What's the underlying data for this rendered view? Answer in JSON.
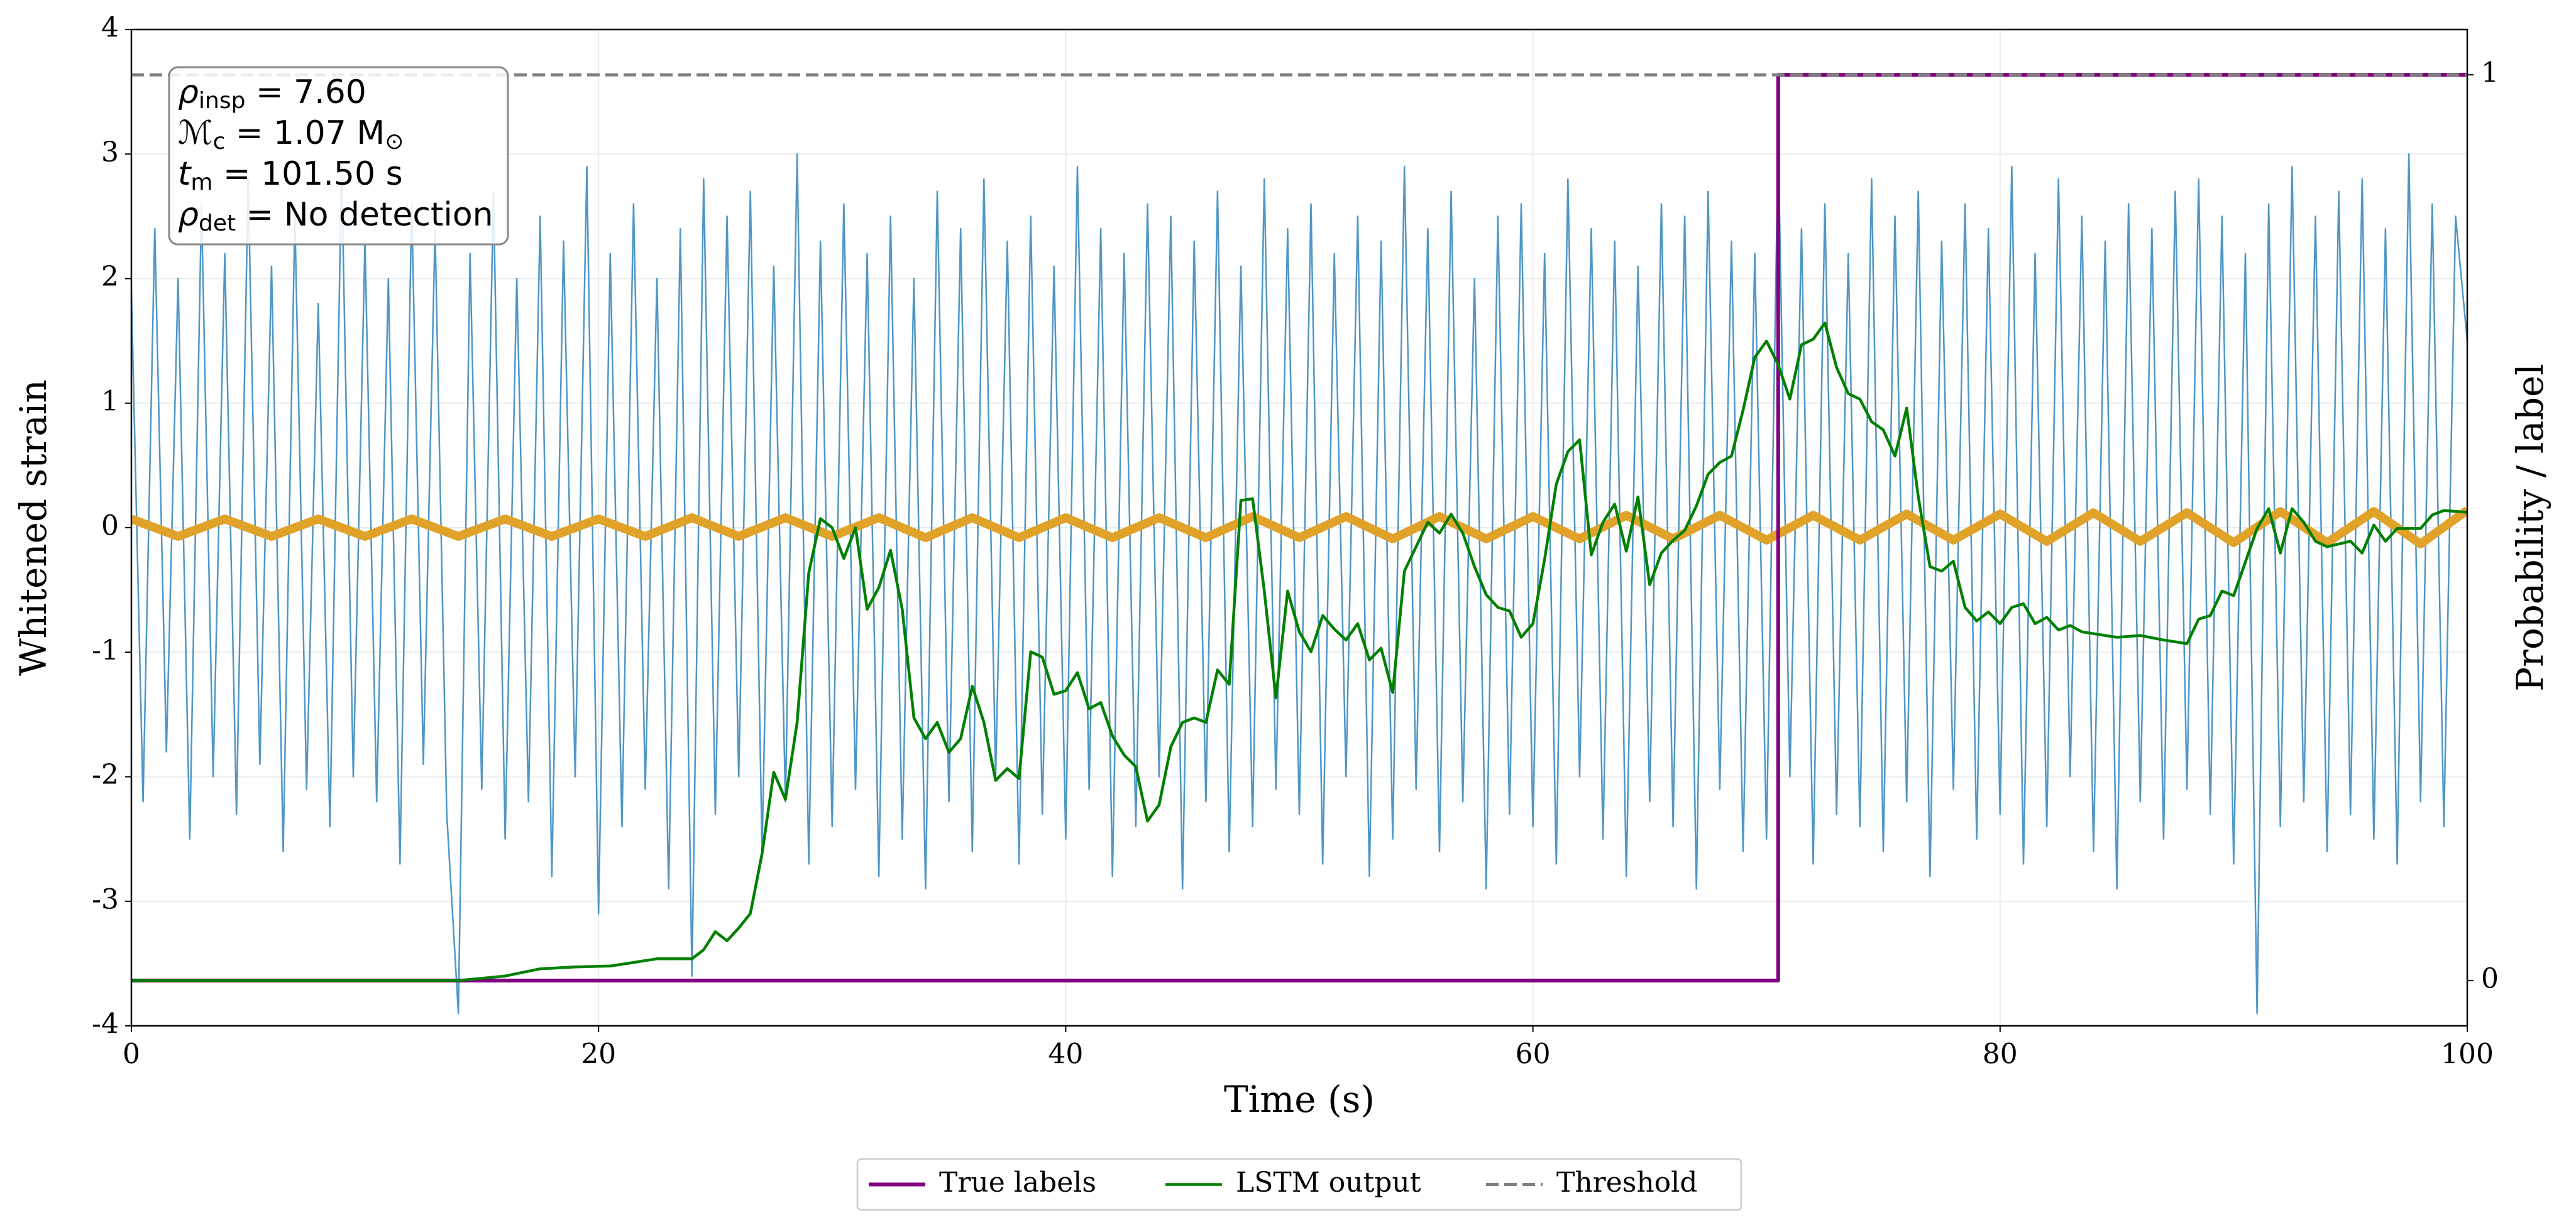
{
  "chart_data": {
    "type": "line",
    "xlabel": "Time (s)",
    "ylabel": "Whitened strain",
    "y2label": "Probability / label",
    "xlim": [
      0,
      100
    ],
    "xticks": [
      0,
      20,
      40,
      60,
      80,
      100
    ],
    "ylim": [
      -4,
      4
    ],
    "yticks": [
      -4,
      -3,
      -2,
      -1,
      0,
      1,
      2,
      3,
      4
    ],
    "y2lim": [
      -0.05,
      1.05
    ],
    "y2ticks": [
      0,
      1
    ],
    "grid": true,
    "legend": "lower center",
    "annotation": [
      [
        "ρ",
        {
          "sub": "insp"
        },
        " = 7.60"
      ],
      [
        "ℳ",
        {
          "sub": "c"
        },
        " = 1.07 M",
        {
          "sub": "⊙"
        }
      ],
      [
        "t",
        {
          "sub": "m"
        },
        " = 101.50 s"
      ],
      [
        "ρ",
        {
          "sub": "det"
        },
        " = No detection"
      ]
    ],
    "series": [
      {
        "color": "#4f96c7",
        "x": [
          0,
          0.5,
          1,
          1.5,
          2,
          2.5,
          3,
          3.5,
          4,
          4.5,
          5,
          5.5,
          6,
          6.5,
          7,
          7.5,
          8,
          8.5,
          9,
          9.5,
          10,
          10.5,
          11,
          11.5,
          12,
          12.5,
          13,
          13.5,
          14,
          14.5,
          15,
          15.5,
          16,
          16.5,
          17,
          17.5,
          18,
          18.5,
          19,
          19.5,
          20,
          20.5,
          21,
          21.5,
          22,
          22.5,
          23,
          23.5,
          24,
          24.5,
          25,
          25.5,
          26,
          26.5,
          27,
          27.5,
          28,
          28.5,
          29,
          29.5,
          30,
          30.5,
          31,
          31.5,
          32,
          32.5,
          33,
          33.5,
          34,
          34.5,
          35,
          35.5,
          36,
          36.5,
          37,
          37.5,
          38,
          38.5,
          39,
          39.5,
          40,
          40.5,
          41,
          41.5,
          42,
          42.5,
          43,
          43.5,
          44,
          44.5,
          45,
          45.5,
          46,
          46.5,
          47,
          47.5,
          48,
          48.5,
          49,
          49.5,
          50,
          50.5,
          51,
          51.5,
          52,
          52.5,
          53,
          53.5,
          54,
          54.5,
          55,
          55.5,
          56,
          56.5,
          57,
          57.5,
          58,
          58.5,
          59,
          59.5,
          60,
          60.5,
          61,
          61.5,
          62,
          62.5,
          63,
          63.5,
          64,
          64.5,
          65,
          65.5,
          66,
          66.5,
          67,
          67.5,
          68,
          68.5,
          69,
          69.5,
          70,
          70.5,
          71,
          71.5,
          72,
          72.5,
          73,
          73.5,
          74,
          74.5,
          75,
          75.5,
          76,
          76.5,
          77,
          77.5,
          78,
          78.5,
          79,
          79.5,
          80,
          80.5,
          81,
          81.5,
          82,
          82.5,
          83,
          83.5,
          84,
          84.5,
          85,
          85.5,
          86,
          86.5,
          87,
          87.5,
          88,
          88.5,
          89,
          89.5,
          90,
          90.5,
          91,
          91.5,
          92,
          92.5,
          93,
          93.5,
          94,
          94.5,
          95,
          95.5,
          96,
          96.5,
          97,
          97.5,
          98,
          98.5,
          99,
          99.5,
          100
        ],
        "values": [
          1.9,
          -2.2,
          2.4,
          -1.8,
          2.0,
          -2.5,
          2.6,
          -2.0,
          2.2,
          -2.3,
          2.8,
          -1.9,
          2.1,
          -2.6,
          2.5,
          -2.1,
          1.8,
          -2.4,
          2.9,
          -2.0,
          2.3,
          -2.2,
          2.0,
          -2.7,
          2.6,
          -1.9,
          2.4,
          -2.3,
          -3.9,
          2.2,
          -2.1,
          2.7,
          -2.5,
          2.0,
          -2.2,
          2.5,
          -2.8,
          2.3,
          -2.0,
          2.9,
          -3.1,
          2.2,
          -2.4,
          2.6,
          -2.1,
          2.0,
          -2.9,
          2.4,
          -3.6,
          2.8,
          -2.3,
          2.5,
          -2.0,
          2.7,
          -2.6,
          2.1,
          -2.2,
          3.0,
          -2.7,
          2.3,
          -2.4,
          2.6,
          -2.1,
          2.2,
          -2.8,
          2.5,
          -2.5,
          2.0,
          -2.9,
          2.7,
          -2.2,
          2.4,
          -2.6,
          2.8,
          -2.0,
          2.3,
          -2.7,
          2.5,
          -2.3,
          2.1,
          -2.5,
          2.9,
          -2.1,
          2.4,
          -2.8,
          2.2,
          -2.4,
          2.6,
          -2.0,
          2.5,
          -2.9,
          2.3,
          -2.2,
          2.7,
          -2.6,
          2.1,
          -2.4,
          2.8,
          -2.1,
          2.4,
          -2.3,
          2.6,
          -2.7,
          2.2,
          -2.0,
          2.5,
          -2.8,
          2.3,
          -2.5,
          2.9,
          -2.1,
          2.4,
          -2.6,
          2.7,
          -2.2,
          2.0,
          -2.9,
          2.5,
          -2.3,
          2.6,
          -2.4,
          2.2,
          -2.7,
          2.8,
          -2.0,
          2.4,
          -2.5,
          2.3,
          -2.8,
          2.1,
          -2.2,
          2.6,
          -2.4,
          2.5,
          -2.9,
          2.7,
          -2.1,
          2.3,
          -2.6,
          2.2,
          -2.5,
          3.1,
          -2.0,
          2.4,
          -2.7,
          2.6,
          -2.3,
          2.2,
          -2.4,
          2.8,
          -2.6,
          2.5,
          -2.2,
          2.7,
          -2.8,
          2.3,
          -2.1,
          2.6,
          -2.5,
          2.4,
          -2.3,
          2.9,
          -2.7,
          2.2,
          -2.4,
          2.8,
          -2.0,
          2.5,
          -2.6,
          2.3,
          -2.9,
          2.6,
          -2.2,
          2.4,
          -2.5,
          2.7,
          -2.1,
          2.8,
          -2.3,
          2.5,
          -2.7,
          2.2,
          -3.9,
          2.6,
          -2.4,
          2.9,
          -2.2,
          2.5,
          -2.6,
          2.7,
          -2.3,
          2.8,
          -2.5,
          2.4,
          -2.7,
          3.0,
          -2.2,
          2.6,
          -2.4,
          2.5,
          1.5
        ]
      },
      {
        "color": "#e0a229",
        "x": [
          0,
          2,
          4,
          6,
          8,
          10,
          12,
          14,
          16,
          18,
          20,
          22,
          24,
          26,
          28,
          30,
          32,
          34,
          36,
          38,
          40,
          42,
          44,
          46,
          48,
          50,
          52,
          54,
          56,
          58,
          60,
          62,
          64,
          66,
          68,
          70,
          72,
          74,
          76,
          78,
          80,
          82,
          84,
          86,
          88,
          90,
          92,
          94,
          96,
          98,
          100
        ],
        "values": [
          0.07,
          -0.07,
          0.07,
          -0.07,
          0.07,
          -0.07,
          0.07,
          -0.07,
          0.07,
          -0.07,
          0.07,
          -0.07,
          0.08,
          -0.07,
          0.08,
          -0.07,
          0.08,
          -0.08,
          0.08,
          -0.08,
          0.08,
          -0.08,
          0.08,
          -0.08,
          0.09,
          -0.08,
          0.09,
          -0.09,
          0.09,
          -0.09,
          0.09,
          -0.09,
          0.1,
          -0.09,
          0.1,
          -0.1,
          0.1,
          -0.1,
          0.11,
          -0.1,
          0.11,
          -0.11,
          0.12,
          -0.11,
          0.12,
          -0.12,
          0.13,
          -0.12,
          0.13,
          -0.13,
          0.14
        ]
      },
      {
        "name": "True labels",
        "color": "#800080",
        "axis": "y2",
        "x": [
          0,
          70.5,
          70.5,
          100
        ],
        "values": [
          0,
          0,
          1,
          1
        ]
      },
      {
        "name": "LSTM output",
        "color": "#008000",
        "axis": "y2",
        "x": [
          0,
          14,
          16,
          17.5,
          19,
          20.5,
          21.5,
          22.5,
          24,
          24.5,
          25,
          25.5,
          26,
          26.5,
          27,
          27.5,
          28,
          28.5,
          29,
          29.5,
          30,
          30.5,
          31,
          31.5,
          32,
          32.5,
          33,
          33.5,
          34,
          34.5,
          35,
          35.5,
          36,
          36.5,
          37,
          37.5,
          38,
          38.5,
          39,
          39.5,
          40,
          40.5,
          41,
          41.5,
          42,
          42.5,
          43,
          43.5,
          44,
          44.5,
          45,
          45.5,
          46,
          46.5,
          47,
          47.5,
          48,
          48.5,
          49,
          49.5,
          50,
          50.5,
          51,
          51.5,
          52,
          52.5,
          53,
          53.5,
          54,
          54.5,
          55,
          55.5,
          56,
          56.5,
          57,
          57.5,
          58,
          58.5,
          59,
          59.5,
          60,
          60.5,
          61,
          61.5,
          62,
          62.5,
          63,
          63.5,
          64,
          64.5,
          65,
          65.5,
          66,
          66.5,
          67,
          67.5,
          68,
          68.5,
          69,
          69.5,
          70,
          70.5,
          71,
          71.5,
          72,
          72.5,
          73,
          73.5,
          74,
          74.5,
          75,
          75.5,
          76,
          76.5,
          77,
          77.5,
          78,
          78.5,
          79,
          79.5,
          80,
          80.5,
          81,
          81.5,
          82,
          82.5,
          83,
          83.5,
          84,
          85,
          86,
          87,
          88,
          88.5,
          89,
          89.5,
          90,
          91,
          91.5,
          92,
          92.5,
          93,
          93.5,
          94,
          95,
          95.5,
          96,
          96.5,
          97,
          98,
          98.5,
          99,
          100
        ],
        "values": [
          0,
          0,
          0.005,
          0.013,
          0.015,
          0.016,
          0.02,
          0.024,
          0.024,
          0.034,
          0.054,
          0.044,
          0.058,
          0.074,
          0.14,
          0.23,
          0.2,
          0.285,
          0.45,
          0.51,
          0.5,
          0.466,
          0.5,
          0.41,
          0.434,
          0.475,
          0.41,
          0.29,
          0.267,
          0.285,
          0.252,
          0.267,
          0.325,
          0.285,
          0.221,
          0.234,
          0.223,
          0.363,
          0.357,
          0.316,
          0.32,
          0.34,
          0.3,
          0.307,
          0.27,
          0.249,
          0.236,
          0.176,
          0.194,
          0.258,
          0.285,
          0.29,
          0.285,
          0.343,
          0.327,
          0.53,
          0.532,
          0.43,
          0.312,
          0.43,
          0.385,
          0.363,
          0.403,
          0.388,
          0.376,
          0.394,
          0.354,
          0.367,
          0.318,
          0.452,
          0.479,
          0.506,
          0.494,
          0.515,
          0.494,
          0.457,
          0.426,
          0.412,
          0.408,
          0.379,
          0.394,
          0.465,
          0.548,
          0.584,
          0.597,
          0.47,
          0.506,
          0.526,
          0.474,
          0.534,
          0.437,
          0.472,
          0.486,
          0.497,
          0.524,
          0.559,
          0.572,
          0.579,
          0.63,
          0.688,
          0.706,
          0.68,
          0.642,
          0.702,
          0.708,
          0.726,
          0.677,
          0.648,
          0.642,
          0.617,
          0.608,
          0.579,
          0.632,
          0.534,
          0.457,
          0.452,
          0.463,
          0.412,
          0.397,
          0.407,
          0.394,
          0.412,
          0.416,
          0.394,
          0.401,
          0.387,
          0.392,
          0.385,
          0.383,
          0.379,
          0.381,
          0.376,
          0.372,
          0.399,
          0.403,
          0.43,
          0.425,
          0.499,
          0.521,
          0.472,
          0.521,
          0.506,
          0.485,
          0.479,
          0.485,
          0.472,
          0.503,
          0.485,
          0.499,
          0.499,
          0.514,
          0.519,
          0.517
        ]
      },
      {
        "name": "Threshold",
        "color": "#808080",
        "axis": "y2",
        "linestyle": "dashed",
        "x": [
          0,
          100
        ],
        "values": [
          1,
          1
        ]
      }
    ]
  }
}
